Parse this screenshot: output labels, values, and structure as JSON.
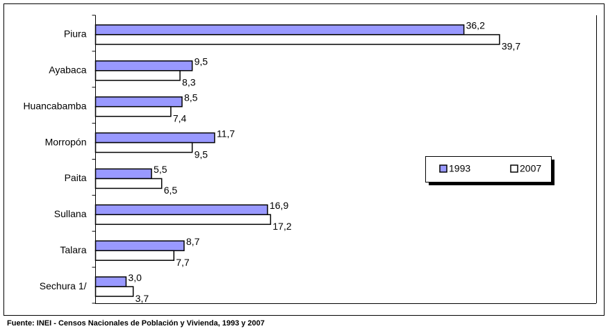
{
  "chart_data": {
    "type": "hbar",
    "categories": [
      "Piura",
      "Ayabaca",
      "Huancabamba",
      "Morropón",
      "Paita",
      "Sullana",
      "Talara",
      "Sechura 1/"
    ],
    "series": [
      {
        "name": "1993",
        "color": "#9999ff",
        "values": [
          36.2,
          9.5,
          8.5,
          11.7,
          5.5,
          16.9,
          8.7,
          3.0
        ],
        "value_labels": [
          "36,2",
          "9,5",
          "8,5",
          "11,7",
          "5,5",
          "16,9",
          "8,7",
          "3,0"
        ]
      },
      {
        "name": "2007",
        "color": "#ffffff",
        "values": [
          39.7,
          8.3,
          7.4,
          9.5,
          6.5,
          17.2,
          7.7,
          3.7
        ],
        "value_labels": [
          "39,7",
          "8,3",
          "7,4",
          "9,5",
          "6,5",
          "17,2",
          "7,7",
          "3,7"
        ]
      }
    ],
    "xlim": [
      0,
      49.2
    ],
    "legend": "right",
    "source": "Fuente: INEI - Censos Nacionales de Población y Vivienda, 1993 y 2007"
  }
}
